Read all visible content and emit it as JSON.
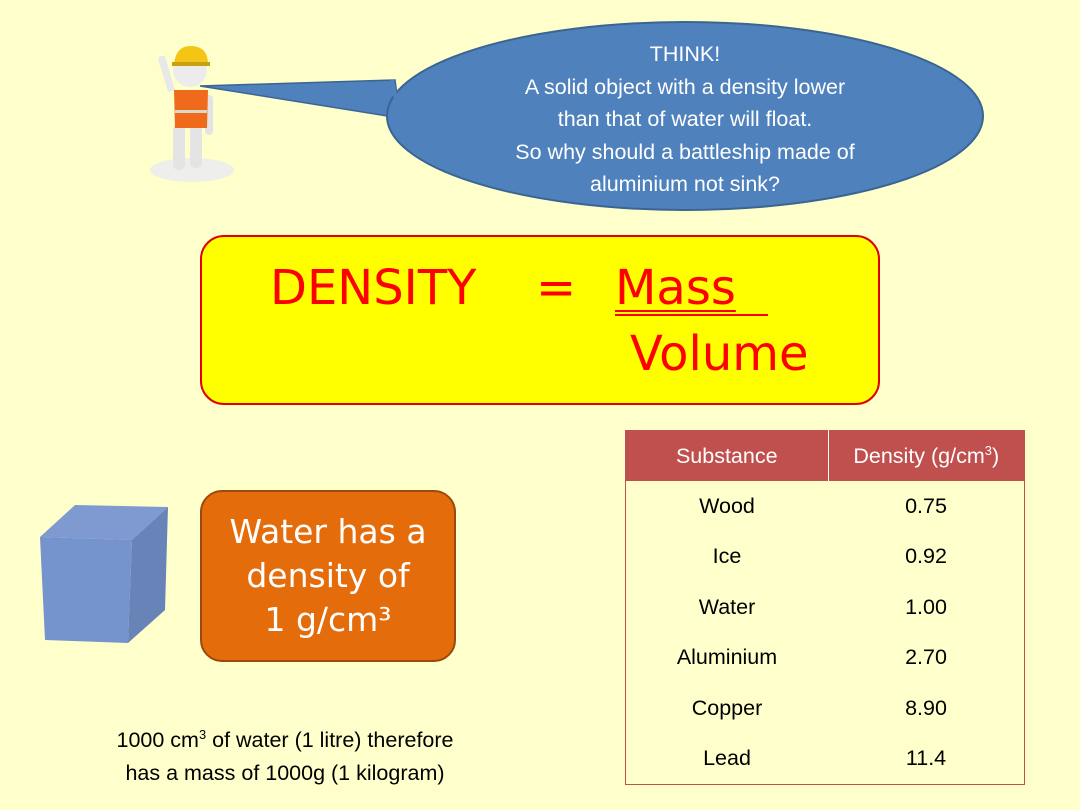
{
  "bubble": {
    "lines": [
      "THINK!",
      "A solid object with a density lower",
      "than that of water will float.",
      "So why should a battleship made of",
      "aluminium not sink?"
    ],
    "color": "#4f81bd"
  },
  "formula": {
    "lhs": "DENSITY",
    "equals": "=",
    "numerator": "Mass",
    "denominator": "Volume",
    "text_color": "#ff0000",
    "bg": "#ffff00"
  },
  "water_box": {
    "line1": "Water has a",
    "line2": "density of",
    "line3": "1 g/cm³",
    "bg": "#e46c0a"
  },
  "table": {
    "headers": [
      "Substance",
      "Density (g/cm",
      "3",
      ")"
    ],
    "header_color": "#c0504d",
    "rows": [
      [
        "Wood",
        "0.75"
      ],
      [
        "Ice",
        "0.92"
      ],
      [
        "Water",
        "1.00"
      ],
      [
        "Aluminium",
        "2.70"
      ],
      [
        "Copper",
        "8.90"
      ],
      [
        "Lead",
        "11.4"
      ]
    ]
  },
  "note": {
    "part1": "1000 cm",
    "sup": "3",
    "part2": " of water (1 litre) therefore",
    "line2": "has a mass of 1000g (1 kilogram)"
  },
  "background": "#ffffcc"
}
